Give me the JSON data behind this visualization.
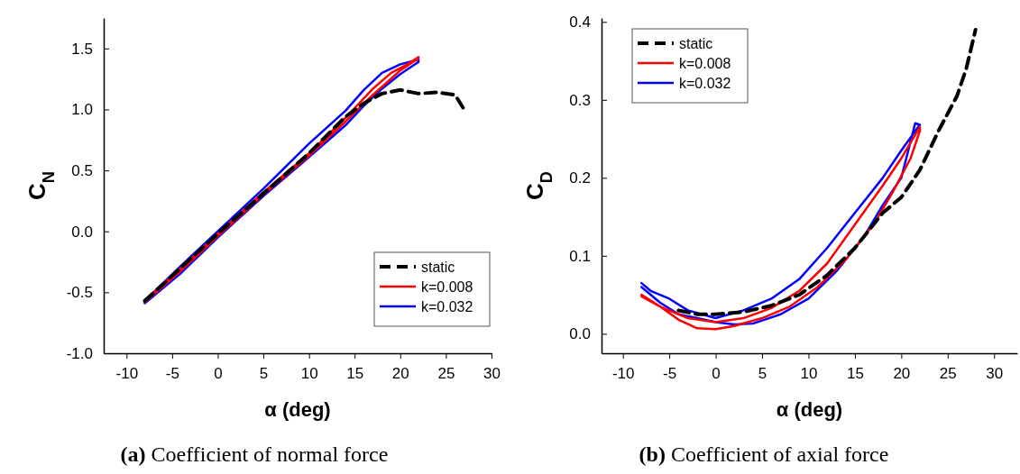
{
  "chart_data": [
    {
      "type": "line",
      "xlabel": "α (deg)",
      "ylabel": "C$_{N}$",
      "annotations": [
        "(a) Coefficient of normal force"
      ],
      "xlim": [
        -12.5,
        30
      ],
      "ylim": [
        -1.0,
        1.75
      ],
      "xticks": [
        -10,
        -5,
        0,
        5,
        10,
        15,
        20,
        25,
        30
      ],
      "yticks": [
        {
          "value": -1.0,
          "label": "-1.0"
        },
        {
          "value": -0.5,
          "label": "-0.5"
        },
        {
          "value": 0.0,
          "label": "0.0"
        },
        {
          "value": 0.5,
          "label": "0.5"
        },
        {
          "value": 1.0,
          "label": "1.0"
        },
        {
          "value": 1.5,
          "label": "1.5"
        }
      ],
      "legend": "bottom right",
      "grid": false,
      "series": [
        {
          "name": "static",
          "color": "#000000",
          "line_style": "dashed",
          "x": [
            -8,
            0,
            5,
            10,
            14,
            16,
            18,
            20,
            22,
            24,
            26,
            27
          ],
          "values": [
            -0.57,
            -0.02,
            0.31,
            0.64,
            0.94,
            1.05,
            1.13,
            1.16,
            1.13,
            1.14,
            1.12,
            1.0
          ]
        },
        {
          "name": "k=0.008",
          "color": "#ff0000",
          "line_style": "solid",
          "x": [
            -8,
            -4,
            0,
            5,
            10,
            14,
            17,
            19,
            21,
            22,
            22,
            20,
            17,
            14,
            10,
            5,
            0,
            -4,
            -8
          ],
          "values": [
            -0.57,
            -0.3,
            -0.02,
            0.32,
            0.64,
            0.93,
            1.17,
            1.3,
            1.38,
            1.43,
            1.42,
            1.32,
            1.12,
            0.9,
            0.62,
            0.3,
            -0.04,
            -0.32,
            -0.58
          ]
        },
        {
          "name": "k=0.032",
          "color": "#0000ff",
          "line_style": "solid",
          "x": [
            -8,
            -4,
            0,
            5,
            10,
            14,
            16,
            18,
            20,
            22,
            22,
            20,
            18,
            16,
            14,
            10,
            5,
            0,
            -4,
            -8
          ],
          "values": [
            -0.59,
            -0.34,
            -0.05,
            0.29,
            0.61,
            0.87,
            1.03,
            1.17,
            1.29,
            1.39,
            1.41,
            1.37,
            1.3,
            1.16,
            0.99,
            0.72,
            0.35,
            0.0,
            -0.28,
            -0.57
          ]
        }
      ]
    },
    {
      "type": "line",
      "xlabel": "α (deg)",
      "ylabel": "C$_{D}$",
      "annotations": [
        "(b) Coefficient of axial force"
      ],
      "xlim": [
        -12.3,
        32.5
      ],
      "ylim": [
        -0.025,
        0.405
      ],
      "xticks": [
        -10,
        -5,
        0,
        5,
        10,
        15,
        20,
        25,
        30
      ],
      "yticks": [
        {
          "value": 0.0,
          "label": "0.0"
        },
        {
          "value": 0.1,
          "label": "0.1"
        },
        {
          "value": 0.2,
          "label": "0.2"
        },
        {
          "value": 0.3,
          "label": "0.3"
        },
        {
          "value": 0.4,
          "label": "0.4"
        }
      ],
      "legend": "top left",
      "grid": false,
      "series": [
        {
          "name": "static",
          "color": "#000000",
          "line_style": "dashed",
          "x": [
            -4,
            -2,
            0,
            3,
            6,
            9,
            12,
            15,
            18,
            20,
            22,
            24,
            26,
            27,
            28
          ],
          "values": [
            0.03,
            0.025,
            0.025,
            0.028,
            0.036,
            0.05,
            0.075,
            0.11,
            0.155,
            0.175,
            0.21,
            0.26,
            0.305,
            0.34,
            0.39
          ]
        },
        {
          "name": "k=0.008",
          "color": "#ff0000",
          "line_style": "solid",
          "x": [
            -8,
            -6,
            -4,
            -2,
            0,
            2,
            5,
            8,
            11,
            14,
            17,
            19,
            21,
            22,
            22,
            20,
            18,
            15,
            12,
            9,
            6,
            3,
            0,
            -3,
            -6,
            -8
          ],
          "values": [
            0.05,
            0.035,
            0.018,
            0.007,
            0.006,
            0.01,
            0.02,
            0.035,
            0.06,
            0.095,
            0.14,
            0.18,
            0.225,
            0.26,
            0.265,
            0.225,
            0.19,
            0.14,
            0.09,
            0.055,
            0.033,
            0.02,
            0.015,
            0.02,
            0.035,
            0.048
          ]
        },
        {
          "name": "k=0.032",
          "color": "#0000ff",
          "line_style": "solid",
          "x": [
            -8,
            -6,
            -4,
            -2,
            0,
            2,
            4,
            7,
            10,
            13,
            16,
            18,
            20,
            21.5,
            22,
            20,
            18,
            15,
            12,
            9,
            6,
            3,
            0,
            -3,
            -5,
            -7,
            -8
          ],
          "values": [
            0.06,
            0.04,
            0.025,
            0.02,
            0.015,
            0.012,
            0.013,
            0.025,
            0.045,
            0.08,
            0.125,
            0.165,
            0.2,
            0.27,
            0.268,
            0.235,
            0.2,
            0.155,
            0.11,
            0.07,
            0.045,
            0.03,
            0.02,
            0.03,
            0.045,
            0.055,
            0.065
          ]
        }
      ]
    }
  ]
}
